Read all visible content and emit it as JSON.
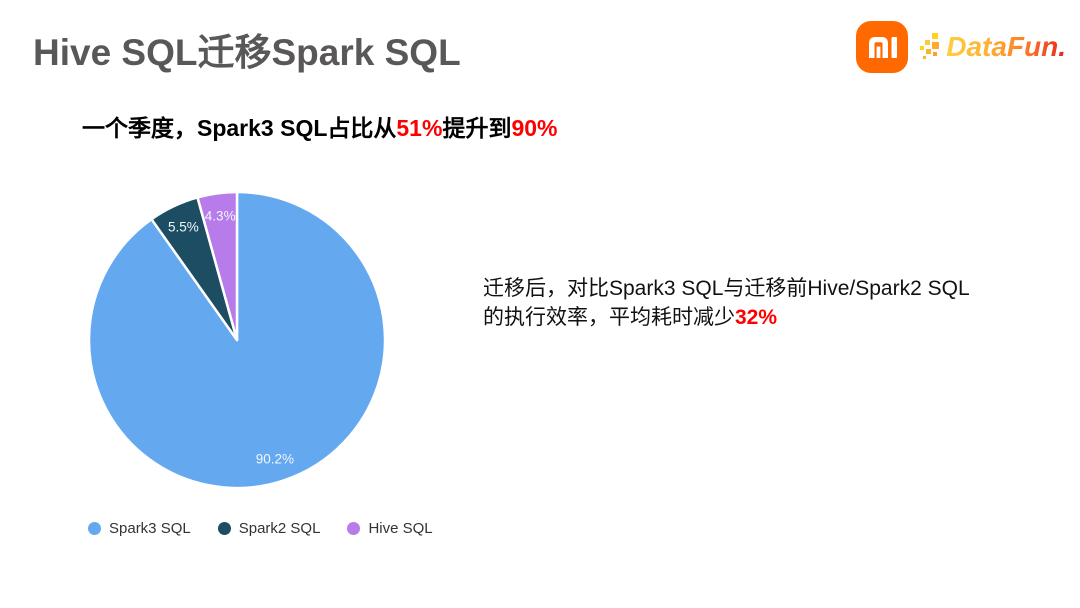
{
  "header": {
    "title": "Hive SQL迁移Spark SQL",
    "datafun_text": "DataFun."
  },
  "subtitle": {
    "part1": "一个季度，Spark3 SQL占比从",
    "highlight1": "51%",
    "part2": "提升到",
    "highlight2": "90%"
  },
  "right_note": {
    "line1": "迁移后，对比Spark3 SQL与迁移前Hive/Spark2 SQL",
    "line2_part": "的执行效率，平均耗时减少",
    "line2_highlight": "32%"
  },
  "colors": {
    "accent_red": "#ff0000",
    "title_gray": "#595757",
    "xiaomi_orange": "#ff6900"
  },
  "chart_data": {
    "type": "pie",
    "labels": [
      "Spark3 SQL",
      "Spark2 SQL",
      "Hive SQL"
    ],
    "values": [
      90.2,
      5.5,
      4.3
    ],
    "value_labels": [
      "90.2%",
      "5.5%",
      "4.3%"
    ],
    "colors": [
      "#64a8f0",
      "#1c4d63",
      "#b77cea"
    ],
    "start_angle_deg": 0,
    "direction": "clockwise",
    "slice_label_color": "#f2f6fc",
    "slice_label_radius_fraction": 0.845,
    "slice_border_color": "#ffffff",
    "legend_position": "bottom-left",
    "title": ""
  }
}
